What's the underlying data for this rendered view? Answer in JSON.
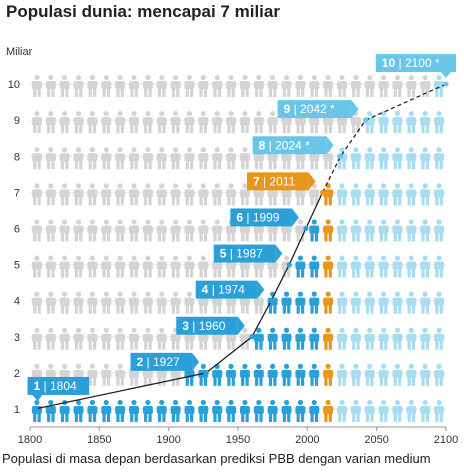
{
  "title": "Populasi dunia: mencapai 7 miliar",
  "footnote": "Populasi di masa depan berdasarkan prediksi PBB dengan varian medium",
  "chart_data": {
    "type": "pictogram-line",
    "title": "Populasi dunia: mencapai 7 miliar",
    "xlabel": "",
    "ylabel": "Miliar",
    "xlim": [
      1800,
      2100
    ],
    "ylim": [
      0.5,
      10.5
    ],
    "x_ticks": [
      1800,
      1850,
      1900,
      1950,
      2000,
      2050,
      2100
    ],
    "y_ticks": [
      1,
      2,
      3,
      4,
      5,
      6,
      7,
      8,
      9,
      10
    ],
    "grid": true,
    "milestones": [
      {
        "x": 1804,
        "y": 1,
        "label": "1 | 1804",
        "kind": "historical"
      },
      {
        "x": 1927,
        "y": 2,
        "label": "2 | 1927",
        "kind": "historical"
      },
      {
        "x": 1960,
        "y": 3,
        "label": "3 | 1960",
        "kind": "historical"
      },
      {
        "x": 1974,
        "y": 4,
        "label": "4 | 1974",
        "kind": "historical"
      },
      {
        "x": 1987,
        "y": 5,
        "label": "5 | 1987",
        "kind": "historical"
      },
      {
        "x": 1999,
        "y": 6,
        "label": "6 | 1999",
        "kind": "historical"
      },
      {
        "x": 2011,
        "y": 7,
        "label": "7 | 2011",
        "kind": "current"
      },
      {
        "x": 2024,
        "y": 8,
        "label": "8 | 2024 *",
        "kind": "projected"
      },
      {
        "x": 2042,
        "y": 9,
        "label": "9 | 2042 *",
        "kind": "projected"
      },
      {
        "x": 2100,
        "y": 10,
        "label": "10 | 2100 *",
        "kind": "projected"
      }
    ],
    "colors": {
      "historical": "#2a9fd8",
      "current": "#e8961e",
      "projected": "#6ac6e8",
      "projected_figure": "#a8dcf0",
      "background_figure": "#d4d4d4",
      "curve": "#222222"
    }
  }
}
